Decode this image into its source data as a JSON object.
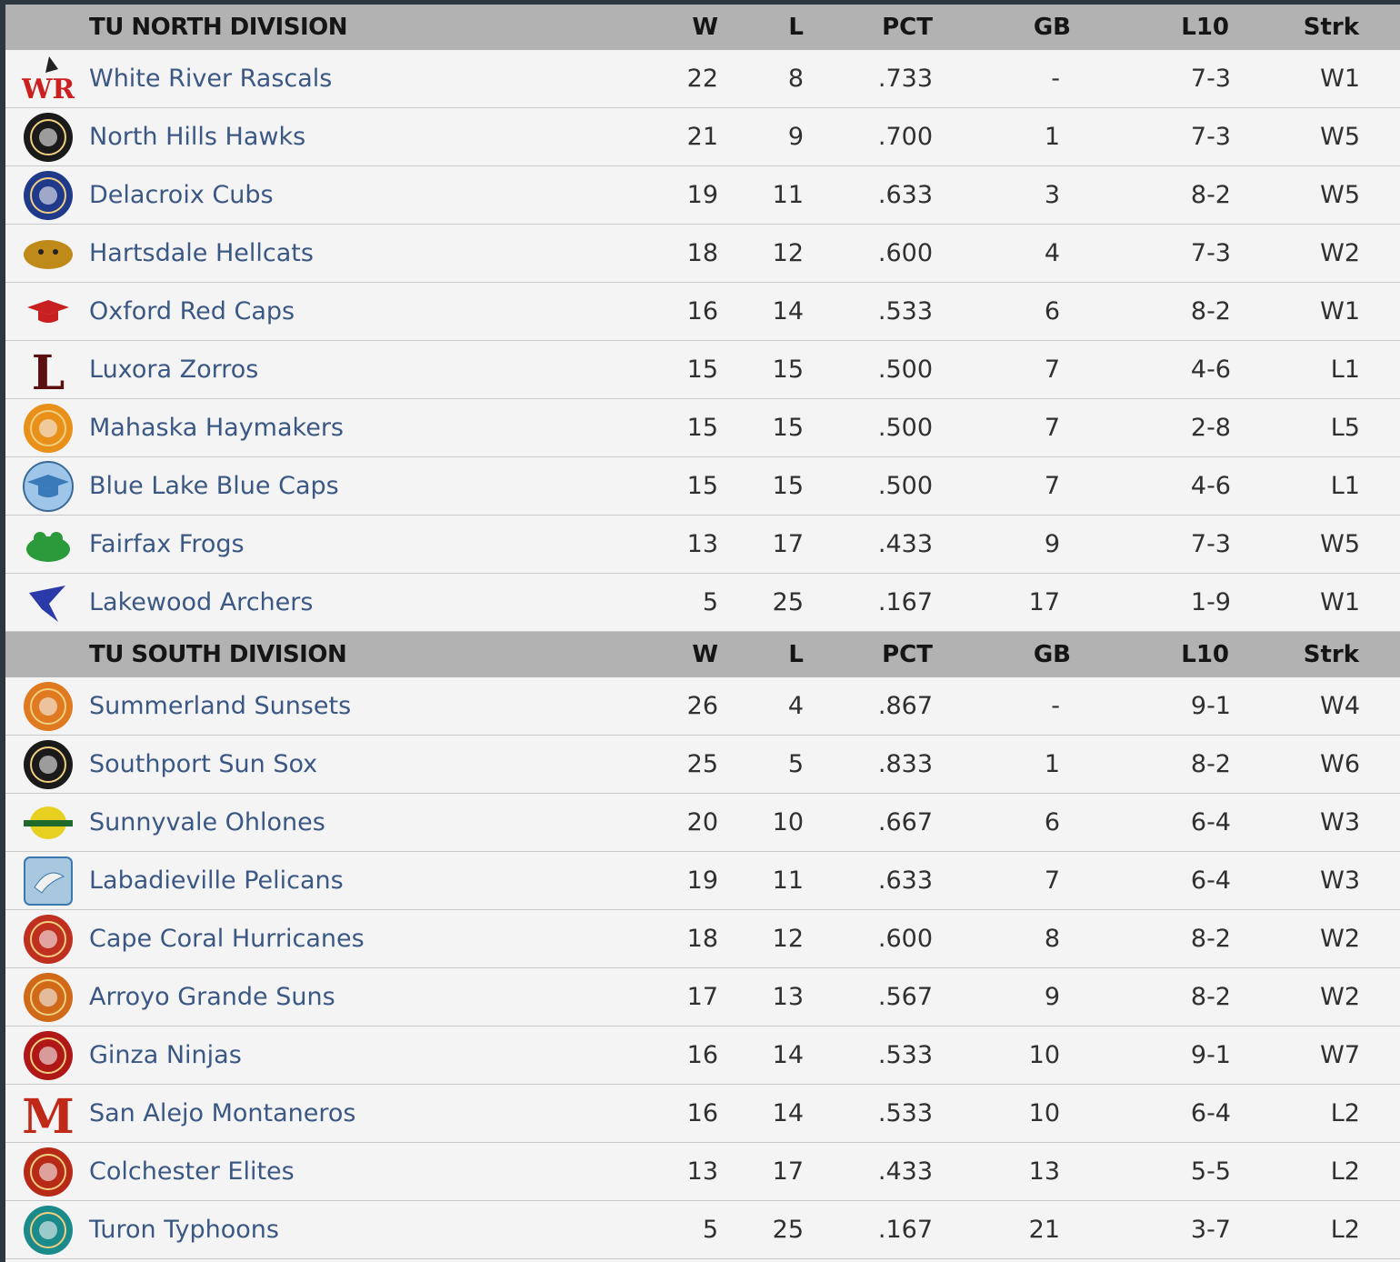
{
  "divisions": [
    {
      "title": "TU NORTH DIVISION",
      "columns": {
        "w": "W",
        "l": "L",
        "pct": "PCT",
        "gb": "GB",
        "l10": "L10",
        "strk": "Strk"
      },
      "teams": [
        {
          "name": "White River Rascals",
          "w": "22",
          "l": "8",
          "pct": ".733",
          "gb": "-",
          "l10": "7-3",
          "strk": "W1",
          "logo": "wr-logo-icon",
          "color": "#cc2020"
        },
        {
          "name": "North Hills Hawks",
          "w": "21",
          "l": "9",
          "pct": ".700",
          "gb": "1",
          "l10": "7-3",
          "strk": "W5",
          "logo": "hawks-logo-icon",
          "color": "#1a1a1a"
        },
        {
          "name": "Delacroix Cubs",
          "w": "19",
          "l": "11",
          "pct": ".633",
          "gb": "3",
          "l10": "8-2",
          "strk": "W5",
          "logo": "cubs-logo-icon",
          "color": "#1f3a8a"
        },
        {
          "name": "Hartsdale Hellcats",
          "w": "18",
          "l": "12",
          "pct": ".600",
          "gb": "4",
          "l10": "7-3",
          "strk": "W2",
          "logo": "hellcats-logo-icon",
          "color": "#c08a1a"
        },
        {
          "name": "Oxford Red Caps",
          "w": "16",
          "l": "14",
          "pct": ".533",
          "gb": "6",
          "l10": "8-2",
          "strk": "W1",
          "logo": "red-cap-logo-icon",
          "color": "#c82020"
        },
        {
          "name": "Luxora Zorros",
          "w": "15",
          "l": "15",
          "pct": ".500",
          "gb": "7",
          "l10": "4-6",
          "strk": "L1",
          "logo": "zorros-logo-icon",
          "color": "#5a1010"
        },
        {
          "name": "Mahaska Haymakers",
          "w": "15",
          "l": "15",
          "pct": ".500",
          "gb": "7",
          "l10": "2-8",
          "strk": "L5",
          "logo": "haymakers-logo-icon",
          "color": "#e8901a"
        },
        {
          "name": "Blue Lake Blue Caps",
          "w": "15",
          "l": "15",
          "pct": ".500",
          "gb": "7",
          "l10": "4-6",
          "strk": "L1",
          "logo": "blue-cap-logo-icon",
          "color": "#3a7ab8"
        },
        {
          "name": "Fairfax Frogs",
          "w": "13",
          "l": "17",
          "pct": ".433",
          "gb": "9",
          "l10": "7-3",
          "strk": "W5",
          "logo": "frogs-logo-icon",
          "color": "#2a9a3a"
        },
        {
          "name": "Lakewood Archers",
          "w": "5",
          "l": "25",
          "pct": ".167",
          "gb": "17",
          "l10": "1-9",
          "strk": "W1",
          "logo": "archers-logo-icon",
          "color": "#2a3aa8"
        }
      ]
    },
    {
      "title": "TU SOUTH DIVISION",
      "columns": {
        "w": "W",
        "l": "L",
        "pct": "PCT",
        "gb": "GB",
        "l10": "L10",
        "strk": "Strk"
      },
      "teams": [
        {
          "name": "Summerland Sunsets",
          "w": "26",
          "l": "4",
          "pct": ".867",
          "gb": "-",
          "l10": "9-1",
          "strk": "W4",
          "logo": "sunsets-logo-icon",
          "color": "#e07a20"
        },
        {
          "name": "Southport Sun Sox",
          "w": "25",
          "l": "5",
          "pct": ".833",
          "gb": "1",
          "l10": "8-2",
          "strk": "W6",
          "logo": "sun-sox-logo-icon",
          "color": "#1a1a1a"
        },
        {
          "name": "Sunnyvale Ohlones",
          "w": "20",
          "l": "10",
          "pct": ".667",
          "gb": "6",
          "l10": "6-4",
          "strk": "W3",
          "logo": "ohlones-logo-icon",
          "color": "#e8d020"
        },
        {
          "name": "Labadieville Pelicans",
          "w": "19",
          "l": "11",
          "pct": ".633",
          "gb": "7",
          "l10": "6-4",
          "strk": "W3",
          "logo": "pelicans-logo-icon",
          "color": "#3a78b0"
        },
        {
          "name": "Cape Coral Hurricanes",
          "w": "18",
          "l": "12",
          "pct": ".600",
          "gb": "8",
          "l10": "8-2",
          "strk": "W2",
          "logo": "hurricanes-logo-icon",
          "color": "#c03020"
        },
        {
          "name": "Arroyo Grande Suns",
          "w": "17",
          "l": "13",
          "pct": ".567",
          "gb": "9",
          "l10": "8-2",
          "strk": "W2",
          "logo": "suns-logo-icon",
          "color": "#d06a18"
        },
        {
          "name": "Ginza Ninjas",
          "w": "16",
          "l": "14",
          "pct": ".533",
          "gb": "10",
          "l10": "9-1",
          "strk": "W7",
          "logo": "ninjas-logo-icon",
          "color": "#b01818"
        },
        {
          "name": "San Alejo Montaneros",
          "w": "16",
          "l": "14",
          "pct": ".533",
          "gb": "10",
          "l10": "6-4",
          "strk": "L2",
          "logo": "montaneros-logo-icon",
          "color": "#c02818"
        },
        {
          "name": "Colchester Elites",
          "w": "13",
          "l": "17",
          "pct": ".433",
          "gb": "13",
          "l10": "5-5",
          "strk": "L2",
          "logo": "elites-logo-icon",
          "color": "#b82a18"
        },
        {
          "name": "Turon Typhoons",
          "w": "5",
          "l": "25",
          "pct": ".167",
          "gb": "21",
          "l10": "3-7",
          "strk": "L2",
          "logo": "typhoons-logo-icon",
          "color": "#1a8a8a"
        }
      ]
    }
  ]
}
